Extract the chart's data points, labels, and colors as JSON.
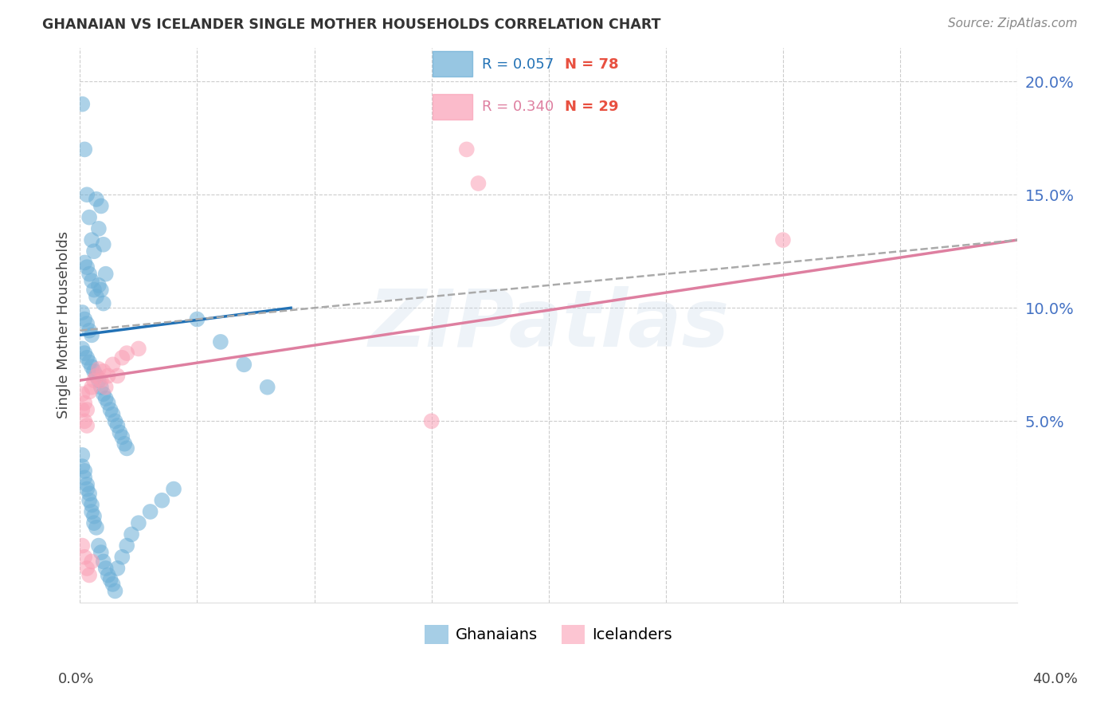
{
  "title": "GHANAIAN VS ICELANDER SINGLE MOTHER HOUSEHOLDS CORRELATION CHART",
  "source": "Source: ZipAtlas.com",
  "ylabel": "Single Mother Households",
  "xmin": 0.0,
  "xmax": 0.4,
  "ymin": -0.03,
  "ymax": 0.215,
  "yticks": [
    0.05,
    0.1,
    0.15,
    0.2
  ],
  "ytick_labels": [
    "5.0%",
    "10.0%",
    "15.0%",
    "20.0%"
  ],
  "blue_color": "#6baed6",
  "pink_color": "#fa9fb5",
  "blue_line_color": "#2171b5",
  "pink_line_color": "#de7fa0",
  "dash_color": "#aaaaaa",
  "watermark": "ZIPatlas",
  "legend_r_blue": "R = 0.057",
  "legend_n_blue": "N = 78",
  "legend_r_pink": "R = 0.340",
  "legend_n_pink": "N = 29",
  "n_color": "#e85040",
  "r_blue_color": "#2171b5",
  "r_pink_color": "#de7fa0",
  "ghanaians_x": [
    0.001,
    0.002,
    0.003,
    0.004,
    0.005,
    0.006,
    0.007,
    0.008,
    0.009,
    0.01,
    0.002,
    0.003,
    0.004,
    0.005,
    0.006,
    0.007,
    0.008,
    0.009,
    0.01,
    0.011,
    0.001,
    0.002,
    0.003,
    0.004,
    0.005,
    0.001,
    0.002,
    0.003,
    0.004,
    0.005,
    0.006,
    0.007,
    0.008,
    0.009,
    0.01,
    0.011,
    0.012,
    0.013,
    0.014,
    0.015,
    0.016,
    0.017,
    0.018,
    0.019,
    0.02,
    0.001,
    0.001,
    0.002,
    0.002,
    0.003,
    0.003,
    0.004,
    0.004,
    0.005,
    0.005,
    0.006,
    0.006,
    0.007,
    0.008,
    0.009,
    0.01,
    0.011,
    0.012,
    0.013,
    0.014,
    0.015,
    0.016,
    0.018,
    0.02,
    0.022,
    0.025,
    0.03,
    0.035,
    0.04,
    0.05,
    0.06,
    0.07,
    0.08
  ],
  "ghanaians_y": [
    0.19,
    0.17,
    0.15,
    0.14,
    0.13,
    0.125,
    0.148,
    0.135,
    0.145,
    0.128,
    0.12,
    0.118,
    0.115,
    0.112,
    0.108,
    0.105,
    0.11,
    0.108,
    0.102,
    0.115,
    0.098,
    0.095,
    0.093,
    0.09,
    0.088,
    0.082,
    0.08,
    0.078,
    0.076,
    0.074,
    0.072,
    0.07,
    0.068,
    0.065,
    0.062,
    0.06,
    0.058,
    0.055,
    0.053,
    0.05,
    0.048,
    0.045,
    0.043,
    0.04,
    0.038,
    0.035,
    0.03,
    0.028,
    0.025,
    0.022,
    0.02,
    0.018,
    0.015,
    0.013,
    0.01,
    0.008,
    0.005,
    0.003,
    -0.005,
    -0.008,
    -0.012,
    -0.015,
    -0.018,
    -0.02,
    -0.022,
    -0.025,
    -0.015,
    -0.01,
    -0.005,
    0.0,
    0.005,
    0.01,
    0.015,
    0.02,
    0.095,
    0.085,
    0.075,
    0.065
  ],
  "icelanders_x": [
    0.001,
    0.001,
    0.002,
    0.002,
    0.003,
    0.003,
    0.004,
    0.005,
    0.006,
    0.007,
    0.008,
    0.009,
    0.01,
    0.011,
    0.012,
    0.014,
    0.016,
    0.018,
    0.02,
    0.025,
    0.001,
    0.002,
    0.003,
    0.004,
    0.005,
    0.15,
    0.165,
    0.17,
    0.3
  ],
  "icelanders_y": [
    0.062,
    0.055,
    0.058,
    0.05,
    0.055,
    0.048,
    0.063,
    0.065,
    0.068,
    0.07,
    0.073,
    0.068,
    0.072,
    0.065,
    0.07,
    0.075,
    0.07,
    0.078,
    0.08,
    0.082,
    -0.005,
    -0.01,
    -0.015,
    -0.018,
    -0.012,
    0.05,
    0.17,
    0.155,
    0.13
  ],
  "blue_line_x": [
    0.0,
    0.09
  ],
  "blue_line_y": [
    0.088,
    0.1
  ],
  "pink_line_x": [
    0.0,
    0.4
  ],
  "pink_line_y": [
    0.068,
    0.13
  ],
  "dash_line_x": [
    0.0,
    0.4
  ],
  "dash_line_y": [
    0.09,
    0.13
  ]
}
